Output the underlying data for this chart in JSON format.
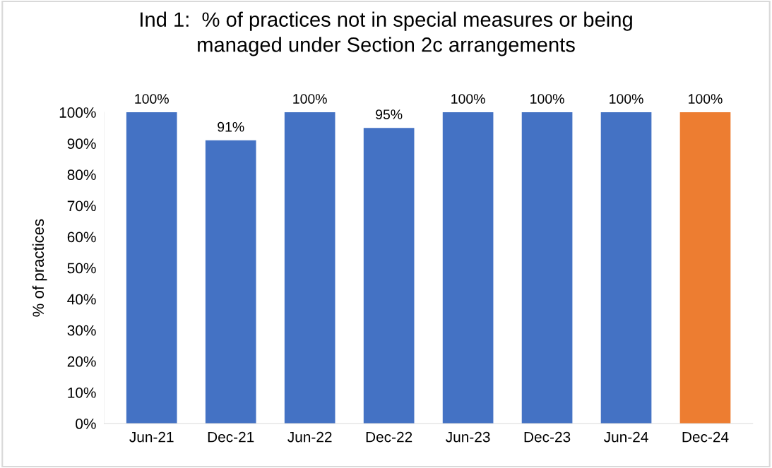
{
  "chart_data": {
    "type": "bar",
    "title": "Ind 1:  % of practices not in special measures or being\nmanaged under Section 2c arrangements",
    "ylabel": "% of practices",
    "categories": [
      "Jun-21",
      "Dec-21",
      "Jun-22",
      "Dec-22",
      "Jun-23",
      "Dec-23",
      "Jun-24",
      "Dec-24"
    ],
    "values": [
      100,
      91,
      100,
      95,
      100,
      100,
      100,
      100
    ],
    "colors": [
      "#4472c4",
      "#4472c4",
      "#4472c4",
      "#4472c4",
      "#4472c4",
      "#4472c4",
      "#4472c4",
      "#ed7d31"
    ],
    "value_labels": [
      "100%",
      "91%",
      "100%",
      "95%",
      "100%",
      "100%",
      "100%",
      "100%"
    ],
    "ylim": [
      0,
      100
    ],
    "yticks": [
      {
        "value": 0,
        "label": "0%"
      },
      {
        "value": 10,
        "label": "10%"
      },
      {
        "value": 20,
        "label": "20%"
      },
      {
        "value": 30,
        "label": "30%"
      },
      {
        "value": 40,
        "label": "40%"
      },
      {
        "value": 50,
        "label": "50%"
      },
      {
        "value": 60,
        "label": "60%"
      },
      {
        "value": 70,
        "label": "70%"
      },
      {
        "value": 80,
        "label": "80%"
      },
      {
        "value": 90,
        "label": "90%"
      },
      {
        "value": 100,
        "label": "100%"
      }
    ],
    "grid": false,
    "legend": false
  }
}
